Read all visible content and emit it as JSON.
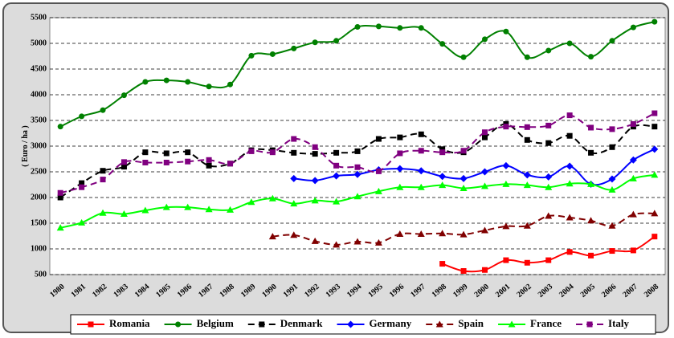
{
  "chart_data": {
    "type": "line",
    "y_label": "( Euro / ha )",
    "categories": [
      "1980",
      "1981",
      "1982",
      "1983",
      "1984",
      "1985",
      "1986",
      "1987",
      "1988",
      "1989",
      "1990",
      "1991",
      "1992",
      "1993",
      "1994",
      "1995",
      "1996",
      "1997",
      "1998",
      "1999",
      "2000",
      "2001",
      "2002",
      "2003",
      "2004",
      "2005",
      "2006",
      "2007",
      "2008"
    ],
    "ylim": [
      500,
      5500
    ],
    "yticks": [
      500,
      1000,
      1500,
      2000,
      2500,
      3000,
      3500,
      4000,
      4500,
      5000,
      5500
    ],
    "grid": true,
    "legend": "bottom",
    "series": [
      {
        "name": "Romania",
        "color": "#ff0000",
        "marker": "square",
        "dashed": false,
        "values": [
          null,
          null,
          null,
          null,
          null,
          null,
          null,
          null,
          null,
          null,
          null,
          null,
          null,
          null,
          null,
          null,
          null,
          null,
          710,
          570,
          590,
          780,
          730,
          780,
          940,
          870,
          960,
          970,
          1240
        ]
      },
      {
        "name": "Belgium",
        "color": "#008000",
        "marker": "circle",
        "dashed": false,
        "values": [
          3380,
          3580,
          3700,
          3990,
          4250,
          4280,
          4250,
          4160,
          4200,
          4760,
          4790,
          4900,
          5020,
          5050,
          5320,
          5330,
          5300,
          5300,
          4990,
          4730,
          5080,
          5230,
          4730,
          4860,
          5000,
          4740,
          5050,
          5310,
          5420
        ]
      },
      {
        "name": "Denmark",
        "color": "#000000",
        "marker": "square",
        "dashed": true,
        "values": [
          2000,
          2280,
          2520,
          2600,
          2880,
          2860,
          2880,
          2620,
          2660,
          2920,
          2920,
          2870,
          2850,
          2870,
          2900,
          3140,
          3170,
          3230,
          2940,
          2880,
          3170,
          3430,
          3120,
          3060,
          3200,
          2870,
          2980,
          3380,
          3380
        ]
      },
      {
        "name": "Germany",
        "color": "#0000ff",
        "marker": "diamond",
        "dashed": false,
        "values": [
          null,
          null,
          null,
          null,
          null,
          null,
          null,
          null,
          null,
          null,
          null,
          2370,
          2330,
          2420,
          2450,
          2540,
          2560,
          2520,
          2410,
          2370,
          2500,
          2620,
          2440,
          2400,
          2610,
          2260,
          2360,
          2730,
          2940
        ]
      },
      {
        "name": "Spain",
        "color": "#800000",
        "marker": "triangle",
        "dashed": true,
        "values": [
          null,
          null,
          null,
          null,
          null,
          null,
          null,
          null,
          null,
          null,
          1240,
          1270,
          1150,
          1080,
          1140,
          1120,
          1290,
          1290,
          1300,
          1280,
          1360,
          1440,
          1450,
          1640,
          1610,
          1550,
          1450,
          1670,
          1690
        ]
      },
      {
        "name": "France",
        "color": "#00ff00",
        "marker": "triangle",
        "dashed": false,
        "values": [
          1410,
          1510,
          1700,
          1680,
          1750,
          1810,
          1810,
          1770,
          1760,
          1910,
          1980,
          1880,
          1940,
          1920,
          2020,
          2120,
          2200,
          2200,
          2240,
          2180,
          2220,
          2260,
          2240,
          2200,
          2270,
          2260,
          2150,
          2370,
          2440
        ]
      },
      {
        "name": "Italy",
        "color": "#800080",
        "marker": "square",
        "dashed": true,
        "values": [
          2090,
          2200,
          2350,
          2690,
          2680,
          2680,
          2700,
          2730,
          2660,
          2900,
          2880,
          3140,
          2980,
          2620,
          2590,
          2510,
          2860,
          2910,
          2880,
          2910,
          3270,
          3380,
          3370,
          3400,
          3600,
          3360,
          3330,
          3430,
          3640
        ]
      }
    ]
  }
}
